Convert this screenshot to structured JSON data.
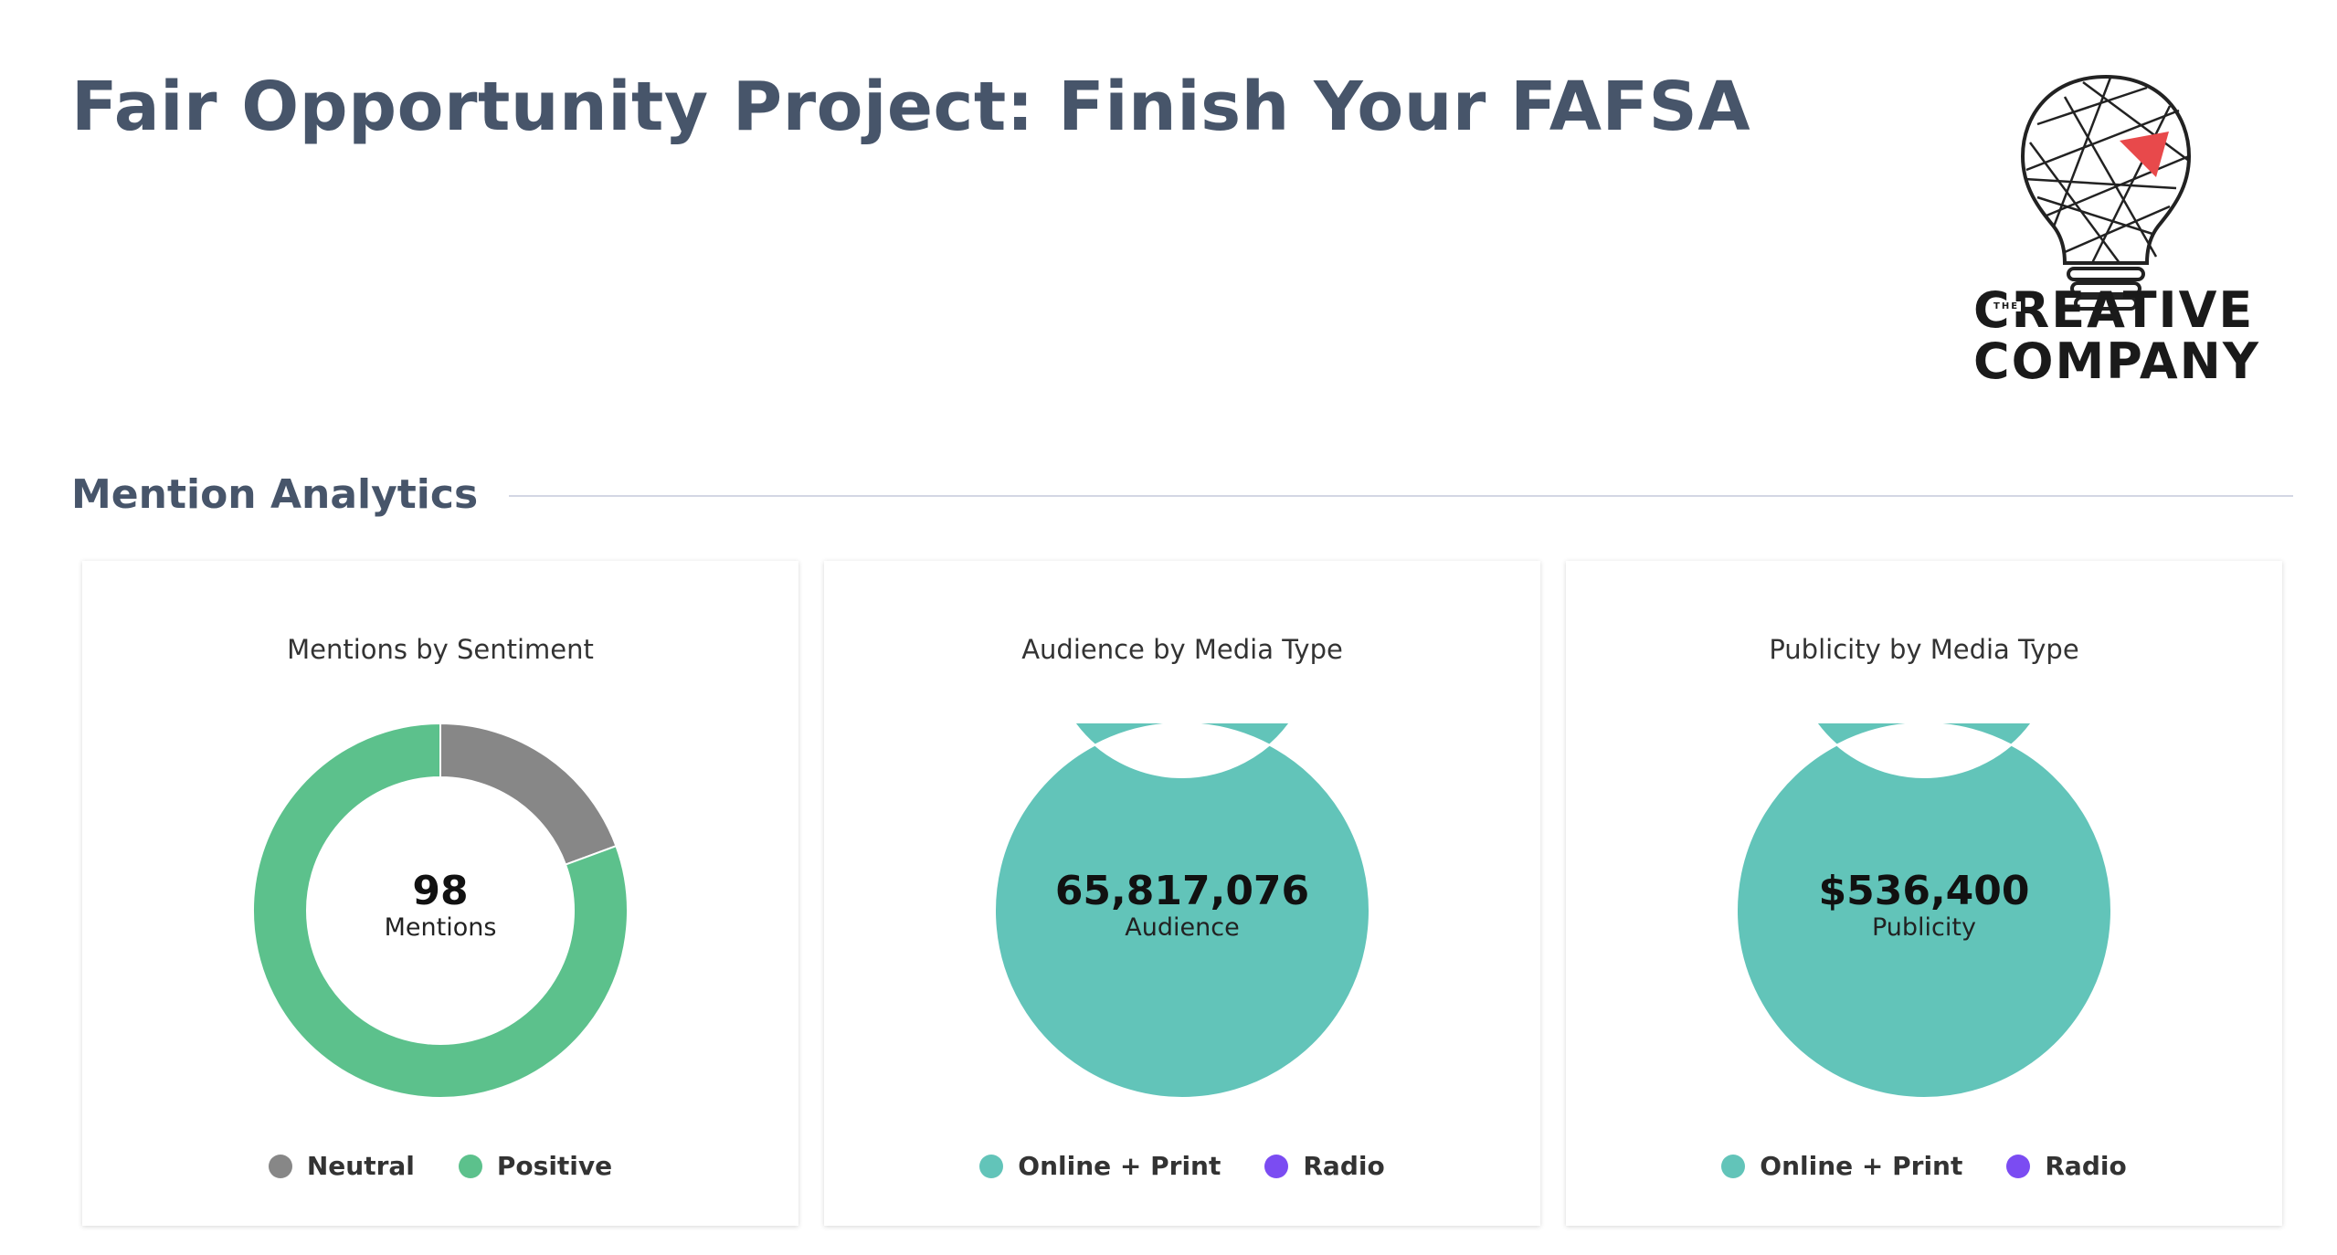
{
  "page": {
    "title": "Fair Opportunity Project: Finish Your FAFSA",
    "logo": {
      "small_text": "THE",
      "line1_rest": "REATIVE",
      "line1_first": "C",
      "line2": "COMPANY",
      "accent_color": "#e8494b"
    }
  },
  "section": {
    "title": "Mention Analytics"
  },
  "colors": {
    "neutral": "#878787",
    "positive": "#5cc18c",
    "online_print": "#62c4b9",
    "radio": "#7b4cf2"
  },
  "chart_data": [
    {
      "type": "pie",
      "title": "Mentions by Sentiment",
      "center_value": "98",
      "center_label": "Mentions",
      "categories": [
        "Neutral",
        "Positive"
      ],
      "values": [
        19,
        79
      ],
      "colors": [
        "#878787",
        "#5cc18c"
      ]
    },
    {
      "type": "pie",
      "title": "Audience by Media Type",
      "center_value": "65,817,076",
      "center_label": "Audience",
      "categories": [
        "Online + Print",
        "Radio"
      ],
      "values": [
        65817076,
        0
      ],
      "colors": [
        "#62c4b9",
        "#7b4cf2"
      ]
    },
    {
      "type": "pie",
      "title": "Publicity by Media Type",
      "center_value": "$536,400",
      "center_label": "Publicity",
      "categories": [
        "Online + Print",
        "Radio"
      ],
      "values": [
        536400,
        0
      ],
      "colors": [
        "#62c4b9",
        "#7b4cf2"
      ]
    }
  ]
}
